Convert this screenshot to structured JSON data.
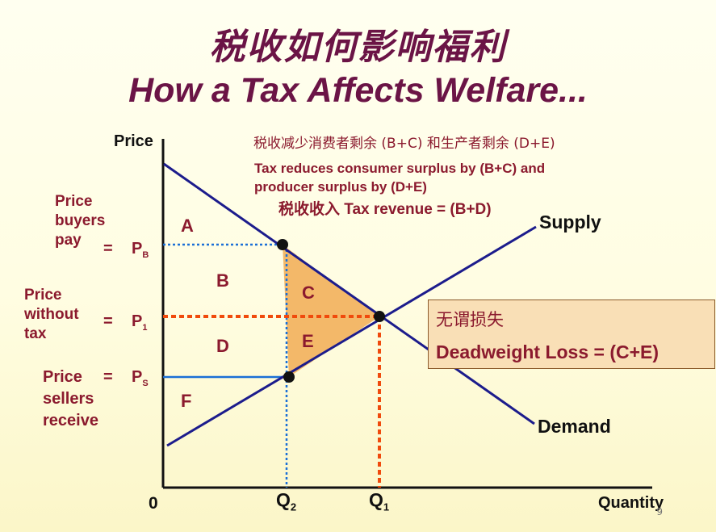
{
  "title": {
    "cn": "税收如何影响福利",
    "en": "How a Tax Affects Welfare..."
  },
  "notes": {
    "cn_line": "税收减少消费者剩余 (B+C) 和生产者剩余 (D+E)",
    "en_line1": "Tax reduces consumer surplus by (B+C) and",
    "en_line2": "producer surplus by (D+E)",
    "revenue_line": "税收收入 Tax revenue = (B+D)"
  },
  "axes": {
    "y_label": "Price",
    "x_label": "Quantity",
    "origin": "0",
    "q2": "Q",
    "q2_sub": "2",
    "q1": "Q",
    "q1_sub": "1"
  },
  "curves": {
    "supply": "Supply",
    "demand": "Demand"
  },
  "price_labels": {
    "buyers": [
      "Price",
      "buyers",
      "pay"
    ],
    "without": [
      "Price",
      "without",
      "tax"
    ],
    "sellers": [
      "Price",
      "sellers",
      "receive"
    ],
    "equals": "=",
    "pb": "P",
    "pb_sub": "B",
    "p1": "P",
    "p1_sub": "1",
    "ps": "P",
    "ps_sub": "S"
  },
  "regions": {
    "a": "A",
    "b": "B",
    "c": "C",
    "d": "D",
    "e": "E",
    "f": "F"
  },
  "deadweight": {
    "cn": "无谓损失",
    "en": "Deadweight Loss = (C+E)"
  },
  "page_number": "9",
  "colors": {
    "title": "#6b1446",
    "maroon_text": "#8b1a2e",
    "curve": "#1c1c8c",
    "triangle_fill": "#f3b869",
    "blue_dotted": "#1a6fd6",
    "red_dotted": "#f04a0c",
    "dwl_box": "#f9dfb6"
  }
}
